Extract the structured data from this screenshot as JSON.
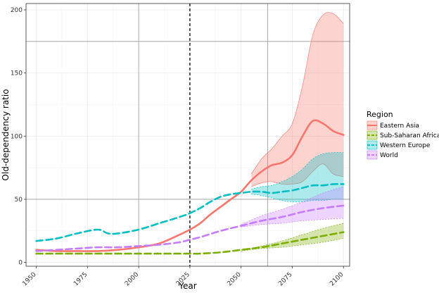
{
  "chart_data": {
    "type": "line",
    "xlabel": "Year",
    "ylabel": "Old-dependency ratio",
    "xlim": [
      1945,
      2103
    ],
    "ylim": [
      -3,
      205
    ],
    "x_ticks": [
      1950,
      1975,
      2000,
      2025,
      2050,
      2075,
      2100
    ],
    "y_ticks": [
      0,
      50,
      100,
      150,
      200
    ],
    "grid": true,
    "legend_title": "Region",
    "legend_position": "right",
    "reference_lines": {
      "vertical_dashed": 2025,
      "vertical_solid": [
        2000,
        2063
      ],
      "horizontal_solid": [
        50,
        175
      ]
    },
    "series": [
      {
        "name": "Eastern Asia",
        "color": "#F8766D",
        "dash": "solid",
        "x": [
          1950,
          1960,
          1970,
          1980,
          1990,
          2000,
          2010,
          2020,
          2025,
          2030,
          2035,
          2040,
          2045,
          2050,
          2055,
          2060,
          2065,
          2070,
          2075,
          2080,
          2085,
          2090,
          2095,
          2100
        ],
        "values": [
          10,
          9,
          9,
          9,
          10,
          12,
          15,
          22,
          26,
          31,
          38,
          44,
          50,
          56,
          65,
          72,
          77,
          79,
          85,
          100,
          112,
          110,
          104,
          101
        ],
        "lower": [
          null,
          null,
          null,
          null,
          null,
          null,
          null,
          null,
          null,
          null,
          null,
          null,
          null,
          null,
          60,
          63,
          64,
          62,
          62,
          64,
          72,
          78,
          70,
          68
        ],
        "upper": [
          null,
          null,
          null,
          null,
          null,
          null,
          null,
          null,
          null,
          null,
          null,
          null,
          null,
          null,
          70,
          82,
          90,
          100,
          110,
          140,
          180,
          196,
          197,
          189
        ]
      },
      {
        "name": "Sub-Saharan Africa",
        "color": "#7CAE00",
        "dash": "dashed",
        "x": [
          1950,
          1960,
          1970,
          1980,
          1990,
          2000,
          2010,
          2020,
          2025,
          2030,
          2040,
          2050,
          2060,
          2070,
          2080,
          2090,
          2100
        ],
        "values": [
          7,
          7,
          7,
          7,
          7,
          7,
          7,
          7,
          7,
          7,
          8,
          10,
          12,
          15,
          18,
          21,
          24
        ],
        "lower": [
          null,
          null,
          null,
          null,
          null,
          null,
          null,
          null,
          null,
          null,
          null,
          9,
          11,
          12,
          14,
          16,
          19
        ],
        "upper": [
          null,
          null,
          null,
          null,
          null,
          null,
          null,
          null,
          null,
          null,
          null,
          10,
          13,
          17,
          22,
          27,
          31
        ]
      },
      {
        "name": "Western Europe",
        "color": "#00BFC4",
        "dash": "dashed",
        "x": [
          1950,
          1960,
          1970,
          1980,
          1985,
          1990,
          2000,
          2010,
          2020,
          2025,
          2030,
          2035,
          2040,
          2045,
          2050,
          2055,
          2060,
          2065,
          2070,
          2075,
          2080,
          2085,
          2090,
          2095,
          2100
        ],
        "values": [
          17,
          19,
          23,
          26,
          23,
          23,
          26,
          31,
          36,
          39,
          43,
          48,
          52,
          54,
          55,
          56,
          56,
          55,
          56,
          57,
          59,
          61,
          61,
          62,
          62
        ],
        "lower": [
          null,
          null,
          null,
          null,
          null,
          null,
          null,
          null,
          null,
          null,
          null,
          null,
          null,
          null,
          null,
          54,
          53,
          51,
          49,
          48,
          48,
          49,
          49,
          50,
          50
        ],
        "upper": [
          null,
          null,
          null,
          null,
          null,
          null,
          null,
          null,
          null,
          null,
          null,
          null,
          null,
          null,
          null,
          58,
          60,
          61,
          64,
          68,
          74,
          82,
          86,
          87,
          87
        ]
      },
      {
        "name": "World",
        "color": "#C77CFF",
        "dash": "dashed",
        "x": [
          1950,
          1960,
          1970,
          1980,
          1990,
          2000,
          2010,
          2020,
          2025,
          2030,
          2040,
          2050,
          2060,
          2070,
          2080,
          2090,
          2100
        ],
        "values": [
          9,
          10,
          11,
          12,
          12,
          13,
          14,
          16,
          18,
          20,
          25,
          29,
          33,
          36,
          40,
          43,
          45
        ],
        "lower": [
          null,
          null,
          null,
          null,
          null,
          null,
          null,
          null,
          null,
          null,
          null,
          28,
          30,
          31,
          33,
          34,
          35
        ],
        "upper": [
          null,
          null,
          null,
          null,
          null,
          null,
          null,
          null,
          null,
          null,
          null,
          30,
          37,
          42,
          48,
          55,
          60
        ]
      }
    ]
  }
}
